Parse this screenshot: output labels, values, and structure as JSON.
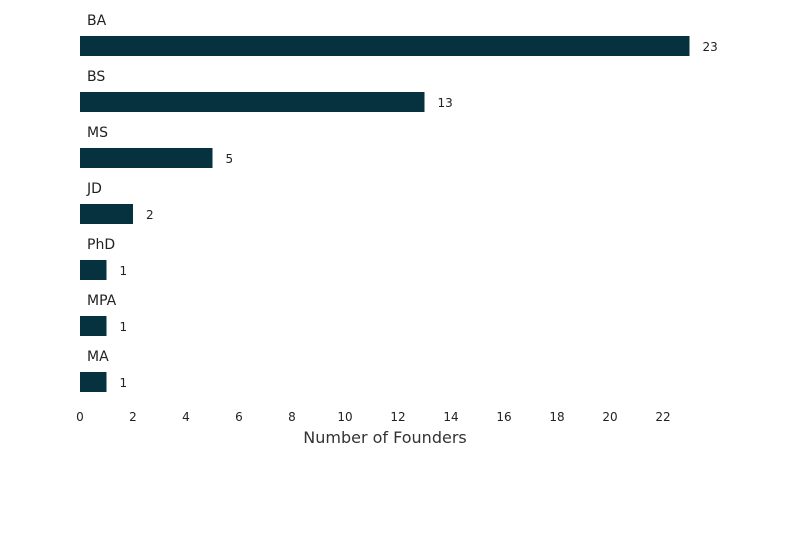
{
  "chart_data": {
    "type": "bar",
    "orientation": "horizontal",
    "categories": [
      "BA",
      "BS",
      "MS",
      "JD",
      "PhD",
      "MPA",
      "MA"
    ],
    "values": [
      23,
      13,
      5,
      2,
      1,
      1,
      1
    ],
    "title": "",
    "xlabel": "Number of Founders",
    "ylabel": "",
    "xlim": [
      0,
      23
    ],
    "xticks": [
      0,
      2,
      4,
      6,
      8,
      10,
      12,
      14,
      16,
      18,
      20,
      22
    ],
    "grid": false,
    "legend": "none",
    "bar_color": "#06323f"
  }
}
